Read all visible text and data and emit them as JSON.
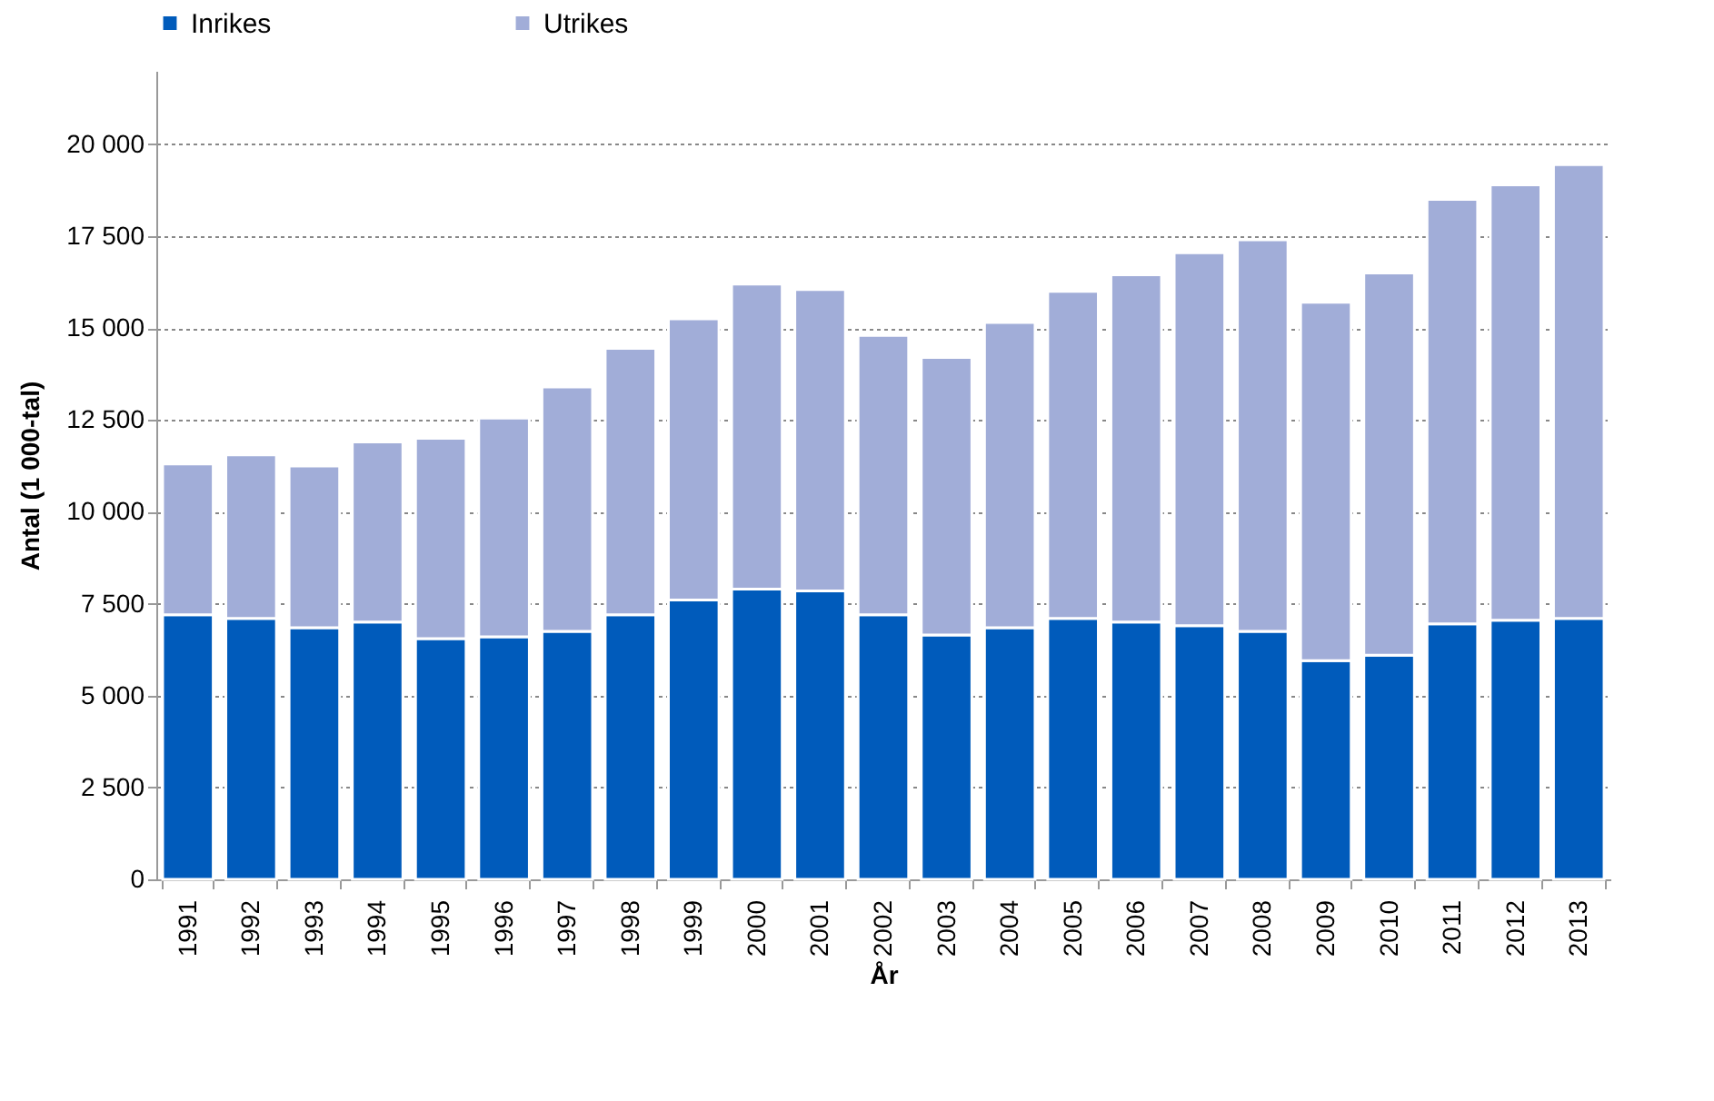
{
  "chart_data": {
    "type": "bar",
    "stacked": true,
    "xlabel": "År",
    "ylabel": "Antal (1 000-tal)",
    "categories": [
      "1991",
      "1992",
      "1993",
      "1994",
      "1995",
      "1996",
      "1997",
      "1998",
      "1999",
      "2000",
      "2001",
      "2002",
      "2003",
      "2004",
      "2005",
      "2006",
      "2007",
      "2008",
      "2009",
      "2010",
      "2011",
      "2012",
      "2013"
    ],
    "series": [
      {
        "name": "Inrikes",
        "color": "#005bbb",
        "values": [
          7200,
          7100,
          6850,
          7000,
          6550,
          6600,
          6750,
          7200,
          7600,
          7900,
          7850,
          7200,
          6650,
          6850,
          7100,
          7000,
          6900,
          6750,
          5950,
          6100,
          6950,
          7050,
          7100
        ]
      },
      {
        "name": "Utrikes",
        "color": "#a1add8",
        "values": [
          4100,
          4450,
          4400,
          4900,
          5450,
          5950,
          6650,
          7250,
          7650,
          8300,
          8200,
          7600,
          7550,
          8300,
          8900,
          9450,
          10150,
          10650,
          9750,
          10400,
          11550,
          11850,
          12350
        ]
      }
    ],
    "ylim": [
      0,
      22000
    ],
    "yticks": [
      {
        "value": 0,
        "label": "0"
      },
      {
        "value": 2500,
        "label": "2 500"
      },
      {
        "value": 5000,
        "label": "5 000"
      },
      {
        "value": 7500,
        "label": "7 500"
      },
      {
        "value": 10000,
        "label": "10 000"
      },
      {
        "value": 12500,
        "label": "12 500"
      },
      {
        "value": 15000,
        "label": "15 000"
      },
      {
        "value": 17500,
        "label": "17 500"
      },
      {
        "value": 20000,
        "label": "20 000"
      }
    ],
    "grid": "y",
    "legend": "top"
  }
}
